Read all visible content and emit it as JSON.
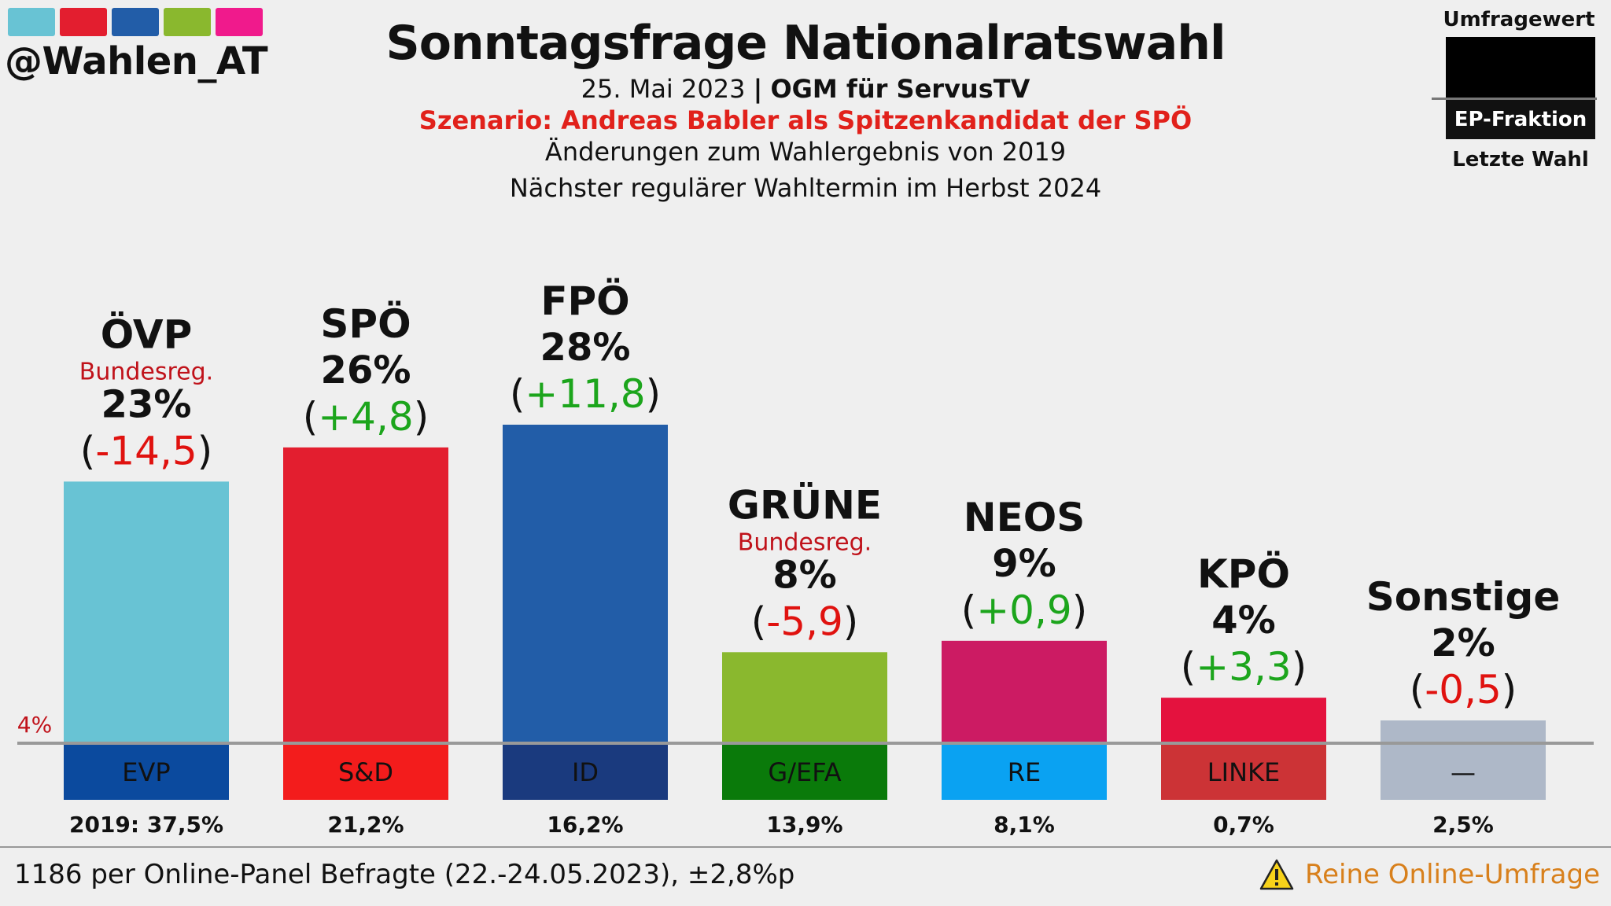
{
  "header": {
    "handle": "@Wahlen_AT",
    "swatch_colors": [
      "#68c3d4",
      "#e31e2f",
      "#225da8",
      "#8ab82e",
      "#f01a8c"
    ],
    "title": "Sonntagsfrage Nationalratswahl",
    "date": "25. Mai 2023",
    "separator": "|",
    "pollster": "OGM für ServusTV",
    "scenario": "Szenario: Andreas Babler als Spitzenkandidat der SPÖ",
    "note1": "Änderungen zum Wahlergebnis von 2019",
    "note2": "Nächster regulärer Wahltermin im Herbst 2024"
  },
  "legend": {
    "top": "Umfragewert",
    "middle": "EP-Fraktion",
    "bottom": "Letzte Wahl"
  },
  "footer": {
    "sample": "1186 per Online-Panel Befragte (22.-24.05.2023), ±2,8%p",
    "warning": "Reine Online-Umfrage",
    "warning_icon": "warning-triangle-icon"
  },
  "chart_data": {
    "type": "bar",
    "categories": [
      "ÖVP",
      "SPÖ",
      "FPÖ",
      "GRÜNE",
      "NEOS",
      "KPÖ",
      "Sonstige"
    ],
    "values": [
      23,
      26,
      28,
      8,
      9,
      4,
      2
    ],
    "value_labels": [
      "23%",
      "26%",
      "28%",
      "8%",
      "9%",
      "4%",
      "2%"
    ],
    "changes": [
      "-14,5",
      "+4,8",
      "+11,8",
      "-5,9",
      "+0,9",
      "+3,3",
      "-0,5"
    ],
    "change_positive": [
      false,
      true,
      true,
      false,
      true,
      true,
      false
    ],
    "gov_label": [
      "Bundesreg.",
      "",
      "",
      "Bundesreg.",
      "",
      "",
      ""
    ],
    "ep_groups": [
      "EVP",
      "S&D",
      "ID",
      "G/EFA",
      "RE",
      "LINKE",
      "—"
    ],
    "last_election": [
      "2019: 37,5%",
      "21,2%",
      "16,2%",
      "13,9%",
      "8,1%",
      "0,7%",
      "2,5%"
    ],
    "bar_colors": [
      "#68c3d4",
      "#e31e2f",
      "#225da8",
      "#8ab82e",
      "#cc1b63",
      "#e4123e",
      "#aeb8c8"
    ],
    "ep_colors": [
      "#0b4a9e",
      "#f31c1c",
      "#1a3a7e",
      "#0a7a0a",
      "#0aa2f2",
      "#cc3336",
      "#aeb8c8"
    ],
    "threshold_value": 4,
    "threshold_label": "4%",
    "threshold_color": "#c0121a",
    "positive_color": "#1ca51c",
    "negative_color": "#e0120f",
    "gov_color": "#c0121a",
    "ylim": [
      0,
      28
    ]
  }
}
